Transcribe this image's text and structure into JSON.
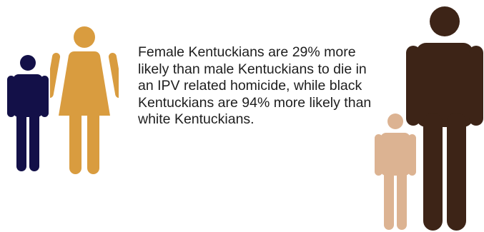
{
  "statement": "Female Kentuckians are 29% more likely than male Kentuckians to die in an IPV related homicide, while black Kentuckians are 94% more likely than white Kentuckians.",
  "figures": [
    {
      "name": "male-figure-icon",
      "color": "#131048"
    },
    {
      "name": "female-figure-icon",
      "color": "#D99C3F"
    },
    {
      "name": "small-male-figure-icon",
      "color": "#DCB392"
    },
    {
      "name": "large-male-figure-icon",
      "color": "#3D2417"
    }
  ]
}
